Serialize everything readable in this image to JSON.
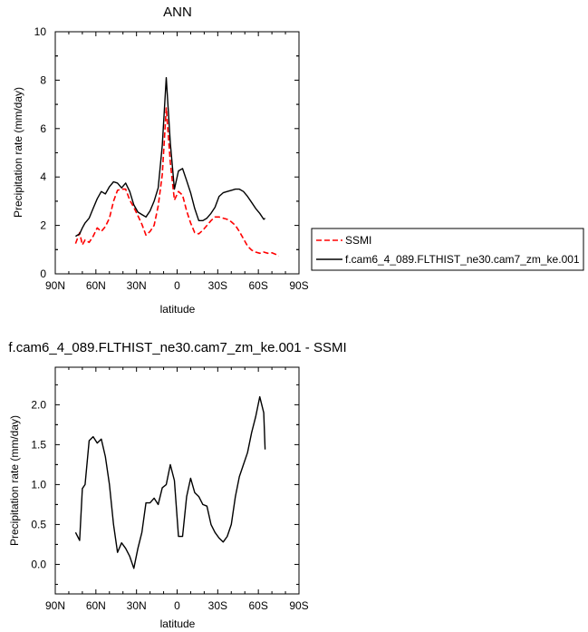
{
  "chart_data": [
    {
      "type": "line",
      "title": "ANN",
      "xlabel": "latitude",
      "ylabel": "Precipitation rate (mm/day)",
      "xlim": [
        90,
        -90
      ],
      "ylim": [
        0,
        10
      ],
      "x_ticks": [
        90,
        60,
        30,
        0,
        -30,
        -60,
        -90
      ],
      "x_tick_labels": [
        "90N",
        "60N",
        "30N",
        "0",
        "30S",
        "60S",
        "90S"
      ],
      "y_ticks": [
        0,
        2,
        4,
        6,
        8,
        10
      ],
      "y_tick_labels": [
        "0",
        "2",
        "4",
        "6",
        "8",
        "10"
      ],
      "legend_position": "right",
      "series": [
        {
          "name": "SSMI",
          "color": "#ff0000",
          "style": "dashed",
          "x": [
            75,
            72,
            70,
            68,
            65,
            62,
            59,
            56,
            53,
            50,
            47,
            44,
            41,
            38,
            35,
            32,
            29,
            26,
            23,
            20,
            17,
            14,
            11,
            8,
            5,
            2,
            -1,
            -4,
            -7,
            -10,
            -13,
            -16,
            -19,
            -22,
            -25,
            -28,
            -31,
            -34,
            -37,
            -40,
            -43,
            -46,
            -49,
            -52,
            -55,
            -58,
            -61,
            -64,
            -67,
            -70,
            -73,
            -75
          ],
          "y": [
            1.25,
            1.7,
            1.2,
            1.4,
            1.3,
            1.55,
            1.9,
            1.75,
            1.95,
            2.3,
            3.0,
            3.45,
            3.5,
            3.5,
            3.05,
            2.75,
            2.4,
            2.05,
            1.6,
            1.75,
            2.0,
            2.8,
            4.1,
            6.85,
            4.6,
            3.05,
            3.4,
            3.25,
            2.6,
            2.1,
            1.7,
            1.65,
            1.8,
            2.0,
            2.2,
            2.35,
            2.35,
            2.3,
            2.25,
            2.15,
            2.0,
            1.75,
            1.45,
            1.15,
            0.98,
            0.9,
            0.85,
            0.9,
            0.85,
            0.87,
            0.8,
            0.73
          ]
        },
        {
          "name": "f.cam6_4_089.FLTHIST_ne30.cam7_zm_ke.001",
          "color": "#000000",
          "style": "solid",
          "x": [
            75,
            72,
            70,
            68,
            65,
            62,
            59,
            56,
            53,
            50,
            47,
            44,
            41,
            38,
            35,
            32,
            29,
            26,
            23,
            20,
            17,
            14,
            11,
            8,
            5,
            2,
            -1,
            -4,
            -7,
            -10,
            -13,
            -16,
            -19,
            -22,
            -25,
            -28,
            -31,
            -34,
            -37,
            -40,
            -43,
            -46,
            -49,
            -52,
            -55,
            -58,
            -61,
            -64,
            -65
          ],
          "y": [
            1.55,
            1.65,
            1.9,
            2.1,
            2.3,
            2.7,
            3.1,
            3.4,
            3.3,
            3.6,
            3.8,
            3.75,
            3.55,
            3.75,
            3.4,
            2.85,
            2.55,
            2.45,
            2.35,
            2.6,
            3.0,
            3.55,
            5.3,
            8.1,
            5.4,
            3.5,
            4.25,
            4.35,
            3.85,
            3.35,
            2.7,
            2.2,
            2.2,
            2.3,
            2.5,
            2.75,
            3.2,
            3.35,
            3.4,
            3.45,
            3.5,
            3.5,
            3.4,
            3.2,
            2.95,
            2.7,
            2.5,
            2.25,
            2.3
          ]
        }
      ]
    },
    {
      "type": "line",
      "title": "f.cam6_4_089.FLTHIST_ne30.cam7_zm_ke.001 - SSMI",
      "xlabel": "latitude",
      "ylabel": "Precipitation rate (mm/day)",
      "xlim": [
        90,
        -90
      ],
      "ylim": [
        -0.37,
        2.47
      ],
      "x_ticks": [
        90,
        60,
        30,
        0,
        -30,
        -60,
        -90
      ],
      "x_tick_labels": [
        "90N",
        "60N",
        "30N",
        "0",
        "30S",
        "60S",
        "90S"
      ],
      "y_ticks": [
        0,
        0.5,
        1.0,
        1.5,
        2.0
      ],
      "y_tick_labels": [
        "0.0",
        "0.5",
        "1.0",
        "1.5",
        "2.0"
      ],
      "series": [
        {
          "color": "#000000",
          "style": "solid",
          "x": [
            75,
            72,
            70,
            68,
            65,
            62,
            59,
            56,
            53,
            50,
            47,
            44,
            41,
            38,
            35,
            32,
            29,
            26,
            23,
            20,
            17,
            14,
            11,
            8,
            5,
            2,
            -1,
            -4,
            -7,
            -10,
            -13,
            -16,
            -19,
            -22,
            -25,
            -28,
            -31,
            -34,
            -37,
            -40,
            -43,
            -46,
            -49,
            -52,
            -55,
            -58,
            -61,
            -64,
            -65
          ],
          "y": [
            0.4,
            0.3,
            0.95,
            1.0,
            1.55,
            1.6,
            1.52,
            1.57,
            1.35,
            1.0,
            0.5,
            0.15,
            0.27,
            0.2,
            0.1,
            -0.05,
            0.2,
            0.4,
            0.77,
            0.77,
            0.83,
            0.75,
            0.96,
            1.0,
            1.25,
            1.05,
            0.35,
            0.35,
            0.85,
            1.08,
            0.9,
            0.85,
            0.75,
            0.73,
            0.5,
            0.4,
            0.33,
            0.28,
            0.35,
            0.5,
            0.85,
            1.1,
            1.25,
            1.4,
            1.65,
            1.85,
            2.1,
            1.9,
            1.44
          ]
        }
      ]
    }
  ],
  "legend": {
    "items": [
      {
        "label": "SSMI",
        "color": "#ff0000",
        "style": "dashed"
      },
      {
        "label": "f.cam6_4_089.FLTHIST_ne30.cam7_zm_ke.001",
        "color": "#000000",
        "style": "solid"
      }
    ]
  }
}
